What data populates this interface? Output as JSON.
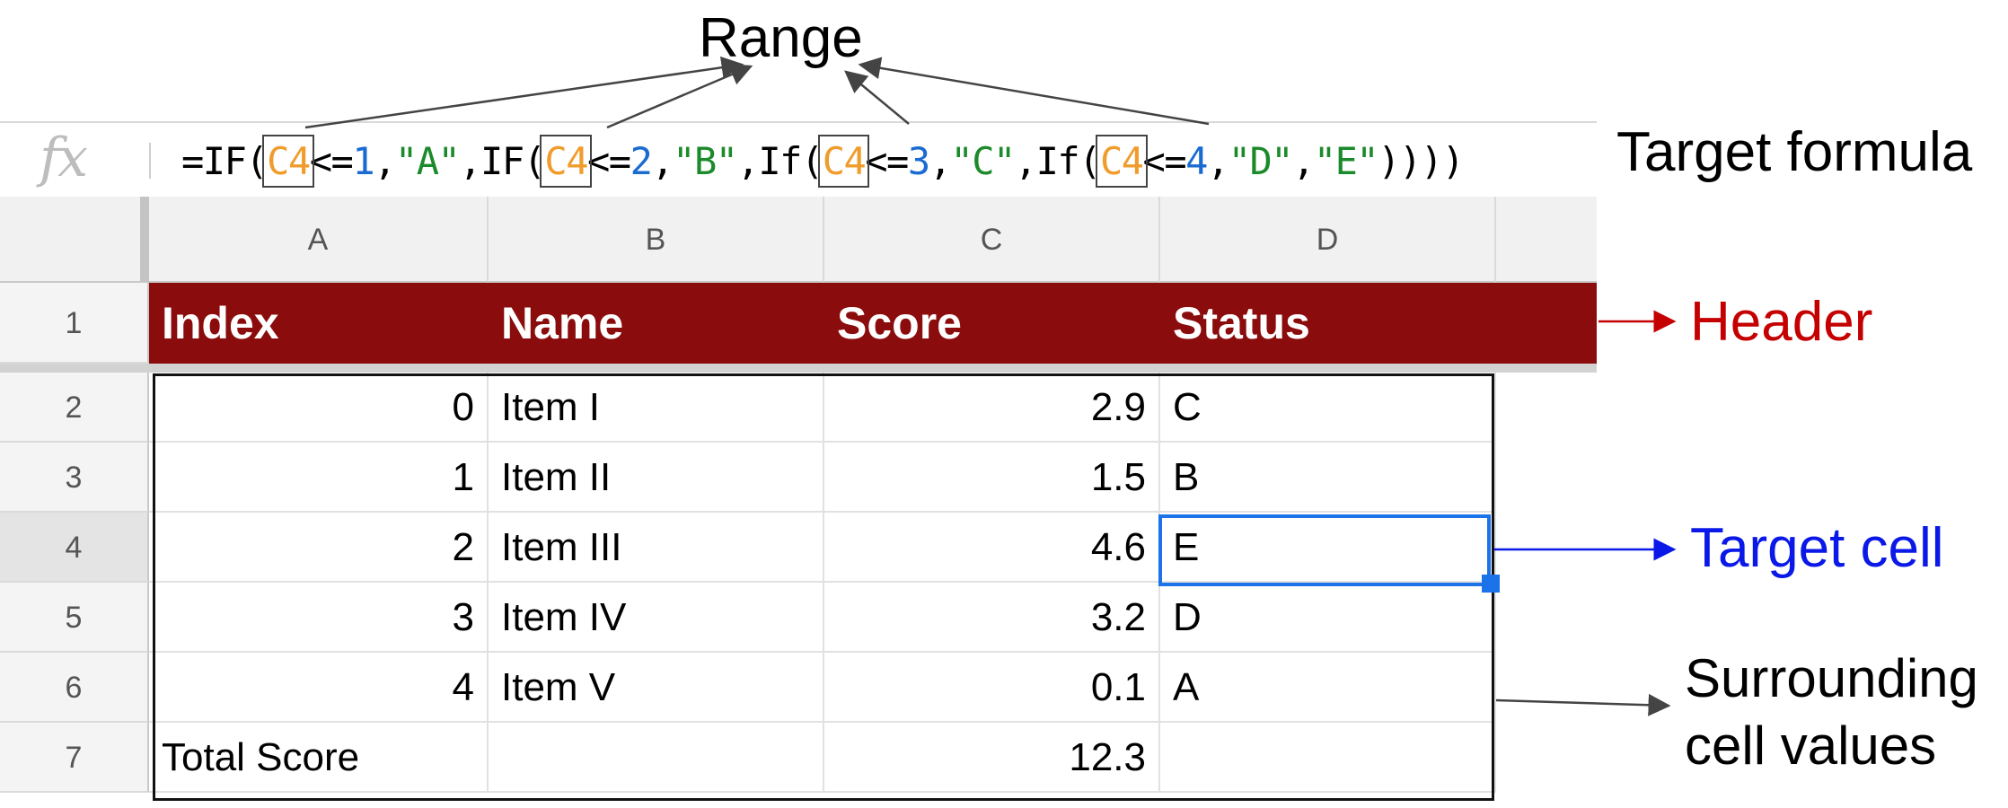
{
  "formula_bar": {
    "fx_label": "fx",
    "tokens": [
      {
        "t": "=IF(",
        "k": "plain"
      },
      {
        "t": "C4",
        "k": "ref"
      },
      {
        "t": "<=",
        "k": "plain"
      },
      {
        "t": "1",
        "k": "num"
      },
      {
        "t": ",",
        "k": "plain"
      },
      {
        "t": "\"A\"",
        "k": "str"
      },
      {
        "t": ",IF(",
        "k": "plain"
      },
      {
        "t": "C4",
        "k": "ref"
      },
      {
        "t": "<=",
        "k": "plain"
      },
      {
        "t": "2",
        "k": "num"
      },
      {
        "t": ",",
        "k": "plain"
      },
      {
        "t": "\"B\"",
        "k": "str"
      },
      {
        "t": ",If(",
        "k": "plain"
      },
      {
        "t": "C4",
        "k": "ref"
      },
      {
        "t": "<=",
        "k": "plain"
      },
      {
        "t": "3",
        "k": "num"
      },
      {
        "t": ",",
        "k": "plain"
      },
      {
        "t": "\"C\"",
        "k": "str"
      },
      {
        "t": ",If(",
        "k": "plain"
      },
      {
        "t": "C4",
        "k": "ref"
      },
      {
        "t": "<=",
        "k": "plain"
      },
      {
        "t": "4",
        "k": "num"
      },
      {
        "t": ",",
        "k": "plain"
      },
      {
        "t": "\"D\"",
        "k": "str"
      },
      {
        "t": ",",
        "k": "plain"
      },
      {
        "t": "\"E\"",
        "k": "str"
      },
      {
        "t": "))))",
        "k": "plain"
      }
    ]
  },
  "columns": [
    "A",
    "B",
    "C",
    "D"
  ],
  "row_numbers": [
    "1",
    "2",
    "3",
    "4",
    "5",
    "6",
    "7"
  ],
  "header": [
    "Index",
    "Name",
    "Score",
    "Status"
  ],
  "rows": [
    {
      "index": "0",
      "name": "Item I",
      "score": "2.9",
      "status": "C"
    },
    {
      "index": "1",
      "name": "Item II",
      "score": "1.5",
      "status": "B"
    },
    {
      "index": "2",
      "name": "Item III",
      "score": "4.6",
      "status": "E"
    },
    {
      "index": "3",
      "name": "Item IV",
      "score": "3.2",
      "status": "D"
    },
    {
      "index": "4",
      "name": "Item V",
      "score": "0.1",
      "status": "A"
    }
  ],
  "total_row": {
    "label": "Total Score",
    "score": "12.3"
  },
  "annotations": {
    "range": "Range",
    "target_formula": "Target formula",
    "header": "Header",
    "target_cell": "Target cell",
    "surrounding_line1": "Surrounding",
    "surrounding_line2": "cell values"
  },
  "colors": {
    "header_fill": "#8b0c0c",
    "ref_token": "#f09c2c",
    "number_token": "#1a6bd1",
    "string_token": "#1b8a2a",
    "header_annotation": "#c40000",
    "target_annotation": "#0a18e8",
    "selection": "#1a73e8"
  }
}
